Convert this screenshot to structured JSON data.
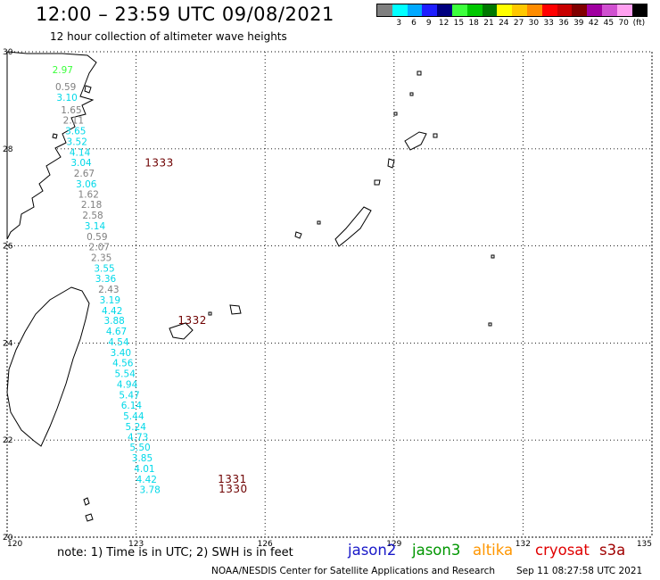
{
  "header": {
    "title": "12:00 – 23:59 UTC 09/08/2021",
    "subtitle": "12 hour collection of altimeter wave heights"
  },
  "legend": {
    "unit": "(ft)",
    "swatches": [
      {
        "color": "#808080",
        "label": ""
      },
      {
        "color": "#00ffff",
        "label": "3"
      },
      {
        "color": "#00a9ff",
        "label": "6"
      },
      {
        "color": "#1e1eff",
        "label": "9"
      },
      {
        "color": "#00007f",
        "label": "12"
      },
      {
        "color": "#3cff3c",
        "label": "15"
      },
      {
        "color": "#00c800",
        "label": "18"
      },
      {
        "color": "#007800",
        "label": "21"
      },
      {
        "color": "#ffff00",
        "label": "24"
      },
      {
        "color": "#ffc800",
        "label": "27"
      },
      {
        "color": "#ff8c00",
        "label": "30"
      },
      {
        "color": "#ff0000",
        "label": "33"
      },
      {
        "color": "#c80000",
        "label": "36"
      },
      {
        "color": "#800000",
        "label": "39"
      },
      {
        "color": "#a000a0",
        "label": "42"
      },
      {
        "color": "#d050d0",
        "label": "45"
      },
      {
        "color": "#ffa0f0",
        "label": "70"
      },
      {
        "color": "#000000",
        "label": ""
      }
    ]
  },
  "map": {
    "lon_range": [
      120,
      135
    ],
    "lat_range": [
      20,
      30
    ],
    "lon_ticks": [
      "120",
      "123",
      "126",
      "129",
      "132",
      "135"
    ],
    "lat_ticks": [
      "20",
      "22",
      "24",
      "26",
      "28",
      "30"
    ],
    "wave_heights": [
      {
        "text": "2.97",
        "lon": 121.05,
        "lat": 29.56,
        "color": "#3cff3c"
      },
      {
        "text": "0.59",
        "lon": 121.12,
        "lat": 29.21,
        "color": "#808080"
      },
      {
        "text": "3.10",
        "lon": 121.15,
        "lat": 28.99,
        "color": "#00d8e8"
      },
      {
        "text": "1.65",
        "lon": 121.25,
        "lat": 28.73,
        "color": "#808080"
      },
      {
        "text": "2.11",
        "lon": 121.3,
        "lat": 28.52,
        "color": "#808080"
      },
      {
        "text": "3.65",
        "lon": 121.35,
        "lat": 28.3,
        "color": "#00d8e8"
      },
      {
        "text": "3.52",
        "lon": 121.38,
        "lat": 28.08,
        "color": "#00d8e8"
      },
      {
        "text": "4.14",
        "lon": 121.45,
        "lat": 27.86,
        "color": "#00d8e8"
      },
      {
        "text": "3.04",
        "lon": 121.48,
        "lat": 27.65,
        "color": "#00d8e8"
      },
      {
        "text": "2.67",
        "lon": 121.55,
        "lat": 27.43,
        "color": "#808080"
      },
      {
        "text": "3.06",
        "lon": 121.6,
        "lat": 27.21,
        "color": "#00d8e8"
      },
      {
        "text": "1.62",
        "lon": 121.65,
        "lat": 26.99,
        "color": "#808080"
      },
      {
        "text": "2.18",
        "lon": 121.72,
        "lat": 26.78,
        "color": "#808080"
      },
      {
        "text": "2.58",
        "lon": 121.75,
        "lat": 26.56,
        "color": "#808080"
      },
      {
        "text": "3.14",
        "lon": 121.8,
        "lat": 26.34,
        "color": "#00d8e8"
      },
      {
        "text": "0.59",
        "lon": 121.85,
        "lat": 26.12,
        "color": "#808080"
      },
      {
        "text": "2.07",
        "lon": 121.9,
        "lat": 25.91,
        "color": "#808080"
      },
      {
        "text": "2.35",
        "lon": 121.95,
        "lat": 25.69,
        "color": "#808080"
      },
      {
        "text": "3.55",
        "lon": 122.02,
        "lat": 25.47,
        "color": "#00d8e8"
      },
      {
        "text": "3.36",
        "lon": 122.05,
        "lat": 25.26,
        "color": "#00d8e8"
      },
      {
        "text": "2.43",
        "lon": 122.12,
        "lat": 25.04,
        "color": "#808080"
      },
      {
        "text": "3.19",
        "lon": 122.15,
        "lat": 24.82,
        "color": "#00d8e8"
      },
      {
        "text": "4.42",
        "lon": 122.2,
        "lat": 24.6,
        "color": "#00d8e8"
      },
      {
        "text": "3.88",
        "lon": 122.25,
        "lat": 24.39,
        "color": "#00d8e8"
      },
      {
        "text": "4.67",
        "lon": 122.3,
        "lat": 24.17,
        "color": "#00d8e8"
      },
      {
        "text": "4.54",
        "lon": 122.35,
        "lat": 23.95,
        "color": "#00d8e8"
      },
      {
        "text": "3.40",
        "lon": 122.4,
        "lat": 23.73,
        "color": "#00d8e8"
      },
      {
        "text": "4.56",
        "lon": 122.45,
        "lat": 23.52,
        "color": "#00d8e8"
      },
      {
        "text": "5.54",
        "lon": 122.5,
        "lat": 23.3,
        "color": "#00d8e8"
      },
      {
        "text": "4.94",
        "lon": 122.55,
        "lat": 23.08,
        "color": "#00d8e8"
      },
      {
        "text": "5.47",
        "lon": 122.6,
        "lat": 22.86,
        "color": "#00d8e8"
      },
      {
        "text": "6.14",
        "lon": 122.65,
        "lat": 22.65,
        "color": "#00d8e8"
      },
      {
        "text": "5.44",
        "lon": 122.7,
        "lat": 22.43,
        "color": "#00d8e8"
      },
      {
        "text": "5.24",
        "lon": 122.75,
        "lat": 22.21,
        "color": "#00d8e8"
      },
      {
        "text": "4.73",
        "lon": 122.8,
        "lat": 21.99,
        "color": "#00d8e8"
      },
      {
        "text": "5.50",
        "lon": 122.85,
        "lat": 21.78,
        "color": "#00d8e8"
      },
      {
        "text": "3.85",
        "lon": 122.9,
        "lat": 21.56,
        "color": "#00d8e8"
      },
      {
        "text": "4.01",
        "lon": 122.95,
        "lat": 21.34,
        "color": "#00d8e8"
      },
      {
        "text": "4.42",
        "lon": 123.0,
        "lat": 21.12,
        "color": "#00d8e8"
      },
      {
        "text": "3.78",
        "lon": 123.08,
        "lat": 20.91,
        "color": "#00d8e8"
      }
    ],
    "cyclone_labels": [
      {
        "text": "1333",
        "lon": 123.2,
        "lat": 27.64
      },
      {
        "text": "1332",
        "lon": 123.97,
        "lat": 24.39
      },
      {
        "text": "1331",
        "lon": 124.9,
        "lat": 21.12
      },
      {
        "text": "1330",
        "lon": 124.92,
        "lat": 20.92
      }
    ]
  },
  "footer": {
    "note": "note: 1) Time is in UTC; 2) SWH is in feet",
    "credit": "NOAA/NESDIS Center for Satellite Applications and Research",
    "timestamp": "Sep 11 08:27:58 UTC 2021",
    "satellites": [
      {
        "name": "jason2",
        "color": "#1818c8"
      },
      {
        "name": "jason3",
        "color": "#009600"
      },
      {
        "name": "altika",
        "color": "#ff9600"
      },
      {
        "name": "cryosat",
        "color": "#e00000"
      },
      {
        "name": "s3a",
        "color": "#a00000"
      }
    ]
  }
}
